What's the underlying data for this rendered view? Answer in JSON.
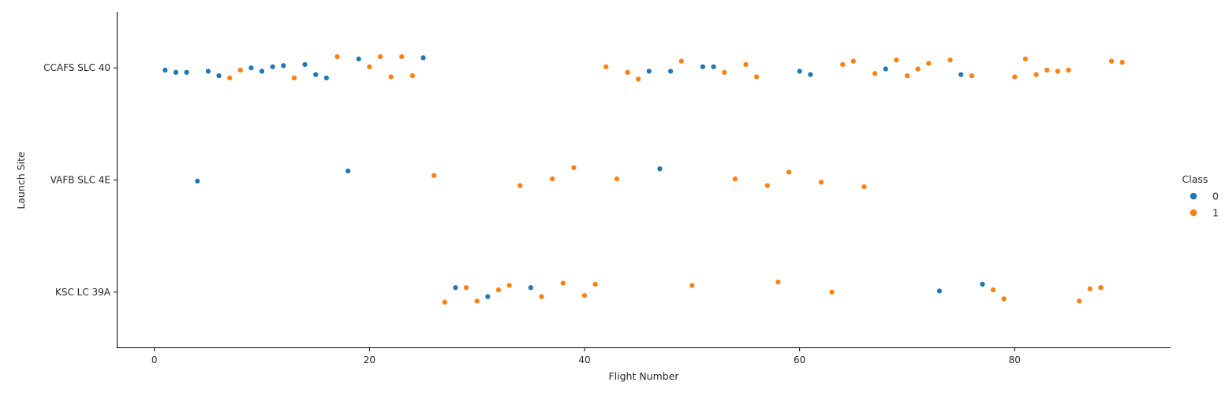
{
  "chart_data": {
    "type": "scatter",
    "xlabel": "Flight Number",
    "ylabel": "Launch Site",
    "xlim": [
      -3.5,
      94.5
    ],
    "x_ticks": [
      0,
      20,
      40,
      60,
      80
    ],
    "categories": [
      "CCAFS SLC 40",
      "VAFB SLC 4E",
      "KSC LC 39A"
    ],
    "grid": false,
    "legend": {
      "title": "Class",
      "position": "right",
      "entries": [
        {
          "label": "0",
          "color": "#1f77b4"
        },
        {
          "label": "1",
          "color": "#ff7f0e"
        }
      ]
    },
    "series": [
      {
        "name": "0",
        "color": "#1f77b4",
        "points": [
          {
            "x": 1,
            "site": "CCAFS SLC 40",
            "jitter": -0.02
          },
          {
            "x": 2,
            "site": "CCAFS SLC 40",
            "jitter": -0.04
          },
          {
            "x": 3,
            "site": "CCAFS SLC 40",
            "jitter": -0.04
          },
          {
            "x": 4,
            "site": "VAFB SLC 4E",
            "jitter": -0.01
          },
          {
            "x": 5,
            "site": "CCAFS SLC 40",
            "jitter": -0.03
          },
          {
            "x": 6,
            "site": "CCAFS SLC 40",
            "jitter": -0.07
          },
          {
            "x": 9,
            "site": "CCAFS SLC 40",
            "jitter": 0.0
          },
          {
            "x": 10,
            "site": "CCAFS SLC 40",
            "jitter": -0.03
          },
          {
            "x": 11,
            "site": "CCAFS SLC 40",
            "jitter": 0.01
          },
          {
            "x": 12,
            "site": "CCAFS SLC 40",
            "jitter": 0.02
          },
          {
            "x": 14,
            "site": "CCAFS SLC 40",
            "jitter": 0.03
          },
          {
            "x": 15,
            "site": "CCAFS SLC 40",
            "jitter": -0.06
          },
          {
            "x": 16,
            "site": "CCAFS SLC 40",
            "jitter": -0.09
          },
          {
            "x": 18,
            "site": "VAFB SLC 4E",
            "jitter": 0.08
          },
          {
            "x": 19,
            "site": "CCAFS SLC 40",
            "jitter": 0.08
          },
          {
            "x": 25,
            "site": "CCAFS SLC 40",
            "jitter": 0.09
          },
          {
            "x": 28,
            "site": "KSC LC 39A",
            "jitter": 0.04
          },
          {
            "x": 31,
            "site": "KSC LC 39A",
            "jitter": -0.04
          },
          {
            "x": 35,
            "site": "KSC LC 39A",
            "jitter": 0.04
          },
          {
            "x": 46,
            "site": "CCAFS SLC 40",
            "jitter": -0.03
          },
          {
            "x": 47,
            "site": "VAFB SLC 4E",
            "jitter": 0.1
          },
          {
            "x": 48,
            "site": "CCAFS SLC 40",
            "jitter": -0.03
          },
          {
            "x": 51,
            "site": "CCAFS SLC 40",
            "jitter": 0.01
          },
          {
            "x": 52,
            "site": "CCAFS SLC 40",
            "jitter": 0.01
          },
          {
            "x": 60,
            "site": "CCAFS SLC 40",
            "jitter": -0.03
          },
          {
            "x": 61,
            "site": "CCAFS SLC 40",
            "jitter": -0.06
          },
          {
            "x": 68,
            "site": "CCAFS SLC 40",
            "jitter": -0.01
          },
          {
            "x": 73,
            "site": "KSC LC 39A",
            "jitter": 0.01
          },
          {
            "x": 75,
            "site": "CCAFS SLC 40",
            "jitter": -0.06
          },
          {
            "x": 77,
            "site": "KSC LC 39A",
            "jitter": 0.07
          }
        ]
      },
      {
        "name": "1",
        "color": "#ff7f0e",
        "points": [
          {
            "x": 7,
            "site": "CCAFS SLC 40",
            "jitter": -0.09
          },
          {
            "x": 8,
            "site": "CCAFS SLC 40",
            "jitter": -0.02
          },
          {
            "x": 13,
            "site": "CCAFS SLC 40",
            "jitter": -0.09
          },
          {
            "x": 17,
            "site": "CCAFS SLC 40",
            "jitter": 0.1
          },
          {
            "x": 20,
            "site": "CCAFS SLC 40",
            "jitter": 0.01
          },
          {
            "x": 21,
            "site": "CCAFS SLC 40",
            "jitter": 0.1
          },
          {
            "x": 22,
            "site": "CCAFS SLC 40",
            "jitter": -0.08
          },
          {
            "x": 23,
            "site": "CCAFS SLC 40",
            "jitter": 0.1
          },
          {
            "x": 24,
            "site": "CCAFS SLC 40",
            "jitter": -0.07
          },
          {
            "x": 26,
            "site": "VAFB SLC 4E",
            "jitter": 0.04
          },
          {
            "x": 27,
            "site": "KSC LC 39A",
            "jitter": -0.09
          },
          {
            "x": 29,
            "site": "KSC LC 39A",
            "jitter": 0.04
          },
          {
            "x": 30,
            "site": "KSC LC 39A",
            "jitter": -0.08
          },
          {
            "x": 32,
            "site": "KSC LC 39A",
            "jitter": 0.02
          },
          {
            "x": 33,
            "site": "KSC LC 39A",
            "jitter": 0.06
          },
          {
            "x": 34,
            "site": "VAFB SLC 4E",
            "jitter": -0.05
          },
          {
            "x": 36,
            "site": "KSC LC 39A",
            "jitter": -0.04
          },
          {
            "x": 37,
            "site": "VAFB SLC 4E",
            "jitter": 0.01
          },
          {
            "x": 38,
            "site": "KSC LC 39A",
            "jitter": 0.08
          },
          {
            "x": 39,
            "site": "VAFB SLC 4E",
            "jitter": 0.11
          },
          {
            "x": 40,
            "site": "KSC LC 39A",
            "jitter": -0.03
          },
          {
            "x": 41,
            "site": "KSC LC 39A",
            "jitter": 0.07
          },
          {
            "x": 42,
            "site": "CCAFS SLC 40",
            "jitter": 0.01
          },
          {
            "x": 43,
            "site": "VAFB SLC 4E",
            "jitter": 0.01
          },
          {
            "x": 44,
            "site": "CCAFS SLC 40",
            "jitter": -0.04
          },
          {
            "x": 45,
            "site": "CCAFS SLC 40",
            "jitter": -0.1
          },
          {
            "x": 49,
            "site": "CCAFS SLC 40",
            "jitter": 0.06
          },
          {
            "x": 50,
            "site": "KSC LC 39A",
            "jitter": 0.06
          },
          {
            "x": 53,
            "site": "CCAFS SLC 40",
            "jitter": -0.04
          },
          {
            "x": 54,
            "site": "VAFB SLC 4E",
            "jitter": 0.01
          },
          {
            "x": 55,
            "site": "CCAFS SLC 40",
            "jitter": 0.03
          },
          {
            "x": 56,
            "site": "CCAFS SLC 40",
            "jitter": -0.08
          },
          {
            "x": 57,
            "site": "VAFB SLC 4E",
            "jitter": -0.05
          },
          {
            "x": 58,
            "site": "KSC LC 39A",
            "jitter": 0.09
          },
          {
            "x": 59,
            "site": "VAFB SLC 4E",
            "jitter": 0.07
          },
          {
            "x": 62,
            "site": "VAFB SLC 4E",
            "jitter": -0.02
          },
          {
            "x": 63,
            "site": "KSC LC 39A",
            "jitter": 0.0
          },
          {
            "x": 64,
            "site": "CCAFS SLC 40",
            "jitter": 0.03
          },
          {
            "x": 65,
            "site": "CCAFS SLC 40",
            "jitter": 0.06
          },
          {
            "x": 66,
            "site": "VAFB SLC 4E",
            "jitter": -0.06
          },
          {
            "x": 67,
            "site": "CCAFS SLC 40",
            "jitter": -0.05
          },
          {
            "x": 69,
            "site": "CCAFS SLC 40",
            "jitter": 0.07
          },
          {
            "x": 70,
            "site": "CCAFS SLC 40",
            "jitter": -0.07
          },
          {
            "x": 71,
            "site": "CCAFS SLC 40",
            "jitter": -0.01
          },
          {
            "x": 72,
            "site": "CCAFS SLC 40",
            "jitter": 0.04
          },
          {
            "x": 74,
            "site": "CCAFS SLC 40",
            "jitter": 0.07
          },
          {
            "x": 76,
            "site": "CCAFS SLC 40",
            "jitter": -0.07
          },
          {
            "x": 78,
            "site": "KSC LC 39A",
            "jitter": 0.02
          },
          {
            "x": 79,
            "site": "KSC LC 39A",
            "jitter": -0.06
          },
          {
            "x": 80,
            "site": "CCAFS SLC 40",
            "jitter": -0.08
          },
          {
            "x": 81,
            "site": "CCAFS SLC 40",
            "jitter": 0.08
          },
          {
            "x": 82,
            "site": "CCAFS SLC 40",
            "jitter": -0.06
          },
          {
            "x": 83,
            "site": "CCAFS SLC 40",
            "jitter": -0.02
          },
          {
            "x": 84,
            "site": "CCAFS SLC 40",
            "jitter": -0.03
          },
          {
            "x": 85,
            "site": "CCAFS SLC 40",
            "jitter": -0.02
          },
          {
            "x": 86,
            "site": "KSC LC 39A",
            "jitter": -0.08
          },
          {
            "x": 87,
            "site": "KSC LC 39A",
            "jitter": 0.03
          },
          {
            "x": 88,
            "site": "KSC LC 39A",
            "jitter": 0.04
          },
          {
            "x": 89,
            "site": "CCAFS SLC 40",
            "jitter": 0.06
          },
          {
            "x": 90,
            "site": "CCAFS SLC 40",
            "jitter": 0.05
          }
        ]
      }
    ]
  }
}
